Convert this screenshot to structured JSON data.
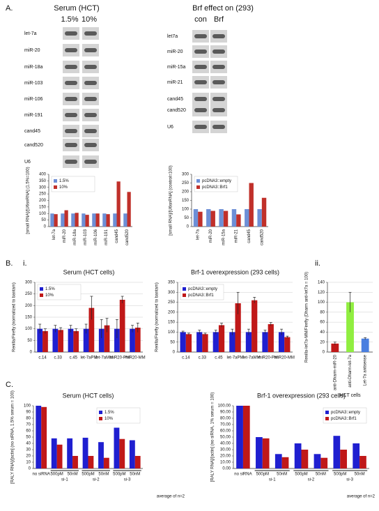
{
  "labels": [
    "A.",
    "B.",
    "i.",
    "ii.",
    "C."
  ],
  "blots": [
    {
      "title": "Serum (HCT)",
      "lanes": [
        "1.5%",
        "10%"
      ],
      "rows": [
        "let-7a",
        "miR-20",
        "miR-18a",
        "miR-103",
        "miR-106",
        "miR-191",
        "cand45",
        "cand520",
        "U6"
      ]
    },
    {
      "title": "Brf effect on (293)",
      "lanes": [
        "con",
        "Brf"
      ],
      "rows": [
        "let7a",
        "miR-20",
        "miR-15a",
        "miR-21",
        "cand45",
        "cand520",
        "U6"
      ]
    }
  ],
  "chart_data": [
    {
      "type": "bar",
      "ylabel": "[small RNA]/[U6snRNA] (1.5%=100)",
      "categories": [
        "let-7a",
        "miR-20",
        "miR-18a",
        "miR-103",
        "miR-106",
        "miR-191",
        "cand45",
        "cand520"
      ],
      "series": [
        {
          "name": "1.5%",
          "color": "#6d8fd6",
          "values": [
            100,
            100,
            100,
            100,
            100,
            100,
            100,
            100
          ]
        },
        {
          "name": "10%",
          "color": "#c0302a",
          "values": [
            95,
            125,
            105,
            90,
            100,
            95,
            345,
            265
          ]
        }
      ],
      "ylim": [
        0,
        400
      ],
      "yticks": [
        0,
        50,
        100,
        150,
        200,
        250,
        300,
        350,
        400
      ],
      "grid": false,
      "legend": "upper left"
    },
    {
      "type": "bar",
      "ylabel": "[small RNA]/[U6snRNA] (control=100)",
      "categories": [
        "let-7a",
        "miR-20",
        "miR-15a",
        "miR-21",
        "cand45",
        "cand520"
      ],
      "series": [
        {
          "name": "pcDNA3::empty",
          "color": "#6d8fd6",
          "values": [
            100,
            100,
            100,
            100,
            100,
            100
          ]
        },
        {
          "name": "pcDNA3::Brf1",
          "color": "#c0302a",
          "values": [
            85,
            90,
            90,
            70,
            250,
            165
          ]
        }
      ],
      "ylim": [
        0,
        300
      ],
      "yticks": [
        0,
        50,
        100,
        150,
        200,
        250,
        300
      ],
      "grid": false,
      "legend": "upper left"
    },
    {
      "type": "bar",
      "title": "Serum (HCT cells)",
      "ylabel": "Renilla/Firefly (normalized to bantam)",
      "categories": [
        "c.14",
        "c.33",
        "c.45",
        "let-7aPM",
        "let-7aMM",
        "miR20-PM",
        "miR20-MM"
      ],
      "series": [
        {
          "name": "1.5%",
          "color": "#1f1fd0",
          "values": [
            100,
            100,
            100,
            100,
            100,
            100,
            100
          ],
          "errors": [
            20,
            15,
            15,
            20,
            40,
            40,
            15
          ]
        },
        {
          "name": "10%",
          "color": "#c01818",
          "values": [
            90,
            95,
            90,
            190,
            115,
            225,
            105
          ],
          "errors": [
            10,
            10,
            10,
            50,
            30,
            15,
            20
          ]
        }
      ],
      "ylim": [
        0,
        300
      ],
      "yticks": [
        0,
        50,
        100,
        150,
        200,
        250,
        300
      ],
      "grid": true,
      "legend": "upper left"
    },
    {
      "type": "bar",
      "title": "Brf-1 overexpression (293 cells)",
      "ylabel": "Renilla/Firefly (normalized to bantam)",
      "categories": [
        "c.14",
        "c.33",
        "c.45",
        "let-7aPM",
        "let-7aMM",
        "miR20-PM",
        "miR20-MM"
      ],
      "series": [
        {
          "name": "pcDNA3::empty",
          "color": "#1f1fd0",
          "values": [
            100,
            100,
            100,
            100,
            100,
            100,
            100
          ],
          "errors": [
            5,
            10,
            10,
            15,
            15,
            10,
            15
          ]
        },
        {
          "name": "pcDNA3::Brf1",
          "color": "#c01818",
          "values": [
            90,
            90,
            135,
            245,
            260,
            140,
            75
          ],
          "errors": [
            5,
            5,
            10,
            55,
            15,
            8,
            5
          ]
        }
      ],
      "ylim": [
        0,
        350
      ],
      "yticks": [
        0,
        50,
        100,
        150,
        200,
        250,
        300,
        350
      ],
      "grid": true,
      "legend": "upper left"
    },
    {
      "type": "bar",
      "ylabel": "Renilla-let7a-MM/Firefly (Dharm anti-let7a = 100)",
      "xlabel": "HCT cells",
      "categories": [
        "anti-Dharm-miR-20",
        "anti-Dharm-let-7a",
        "Let-7a antisense"
      ],
      "values": [
        17,
        100,
        27
      ],
      "errors": [
        3,
        20,
        2
      ],
      "colors": [
        "#c01818",
        "#90ee40",
        "#4a7fe0"
      ],
      "ylim": [
        0,
        140
      ],
      "yticks": [
        0,
        20,
        40,
        60,
        80,
        100,
        120,
        140
      ],
      "grid": true
    },
    {
      "type": "bar",
      "title": "Serum (HCT cells)",
      "ylabel": "[RALY RNA]/[actin] (no siRNA, 1.5% serum = 100)",
      "categories": [
        "no siRNA",
        "500pM",
        "50nM",
        "500pM",
        "50nM",
        "500pM",
        "50nM"
      ],
      "group_labels": [
        "si-1",
        "si-2",
        "si-3"
      ],
      "series": [
        {
          "name": "1.5%",
          "color": "#1f1fd0",
          "values": [
            100,
            48,
            48,
            49,
            42,
            65,
            45
          ]
        },
        {
          "name": "10%",
          "color": "#c01818",
          "values": [
            98,
            38,
            20,
            20,
            17,
            47,
            20
          ]
        }
      ],
      "ylim": [
        0,
        100
      ],
      "yticks": [
        0,
        10,
        20,
        30,
        40,
        50,
        60,
        70,
        80,
        90,
        100
      ],
      "grid": false,
      "legend": "upper right",
      "note": "average of n=2"
    },
    {
      "type": "bar",
      "title": "Brf-1 overexpression (293 cells)",
      "ylabel": "[RALY RNA]/[actin] (no siRNA, 1% serum = 100)",
      "categories": [
        "no siRNA",
        "500pM",
        "50nM",
        "500pM",
        "50nM",
        "500pM",
        "50nM"
      ],
      "group_labels": [
        "si-1",
        "si-2",
        "si-3"
      ],
      "series": [
        {
          "name": "pcDNA3::empty",
          "color": "#1f1fd0",
          "values": [
            100,
            50,
            23,
            40,
            23,
            52,
            40
          ]
        },
        {
          "name": "pcDNA3::Brf1",
          "color": "#c01818",
          "values": [
            100,
            48,
            18,
            30,
            17,
            30,
            20
          ]
        }
      ],
      "ylim": [
        0,
        100
      ],
      "yticks": [
        {
          "value": 0,
          "label": "0.00"
        },
        {
          "value": 10,
          "label": "10.00"
        },
        {
          "value": 20,
          "label": "20.00"
        },
        {
          "value": 30,
          "label": "30.00"
        },
        {
          "value": 40,
          "label": "40.00"
        },
        {
          "value": 50,
          "label": "50.00"
        },
        {
          "value": 60,
          "label": "60.00"
        },
        {
          "value": 70,
          "label": "70.00"
        },
        {
          "value": 80,
          "label": "80.00"
        },
        {
          "value": 90,
          "label": "90.00"
        },
        {
          "value": 100,
          "label": "100.00"
        }
      ],
      "grid": false,
      "legend": "upper right",
      "note": "average of n=2"
    }
  ]
}
